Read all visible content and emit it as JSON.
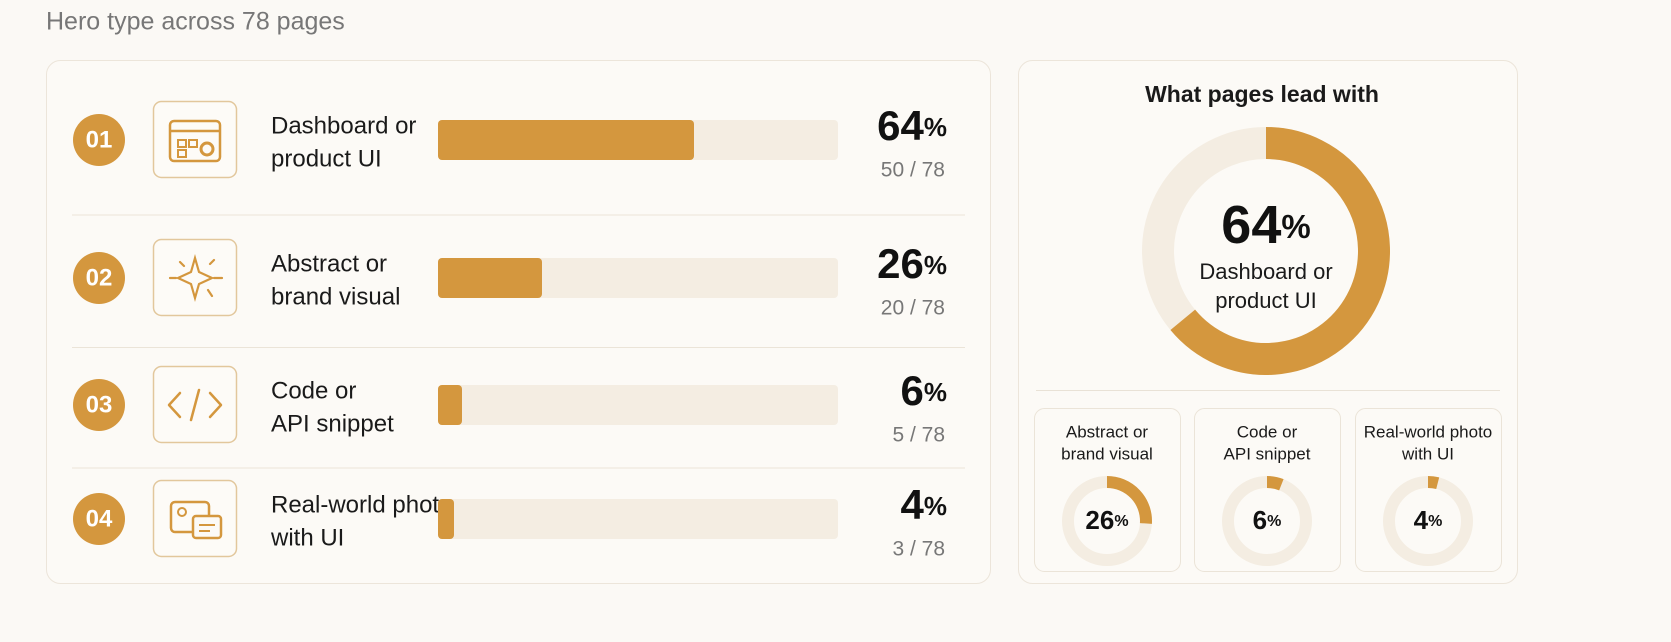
{
  "title": "Hero type across 78 pages",
  "unit": "%",
  "items": [
    {
      "rank": "01",
      "label": [
        "Dashboard or",
        "product UI"
      ],
      "value": 64,
      "count": "50 / 78"
    },
    {
      "rank": "02",
      "label": [
        "Abstract or",
        "brand visual"
      ],
      "value": 26,
      "count": "20 / 78"
    },
    {
      "rank": "03",
      "label": [
        "Code or",
        "API snippet"
      ],
      "value": 6,
      "count": "5 / 78"
    },
    {
      "rank": "04",
      "label": [
        "Real-world photo",
        "with UI"
      ],
      "value": 4,
      "count": "3 / 78"
    }
  ],
  "panel": {
    "title": "What pages lead with"
  }
}
